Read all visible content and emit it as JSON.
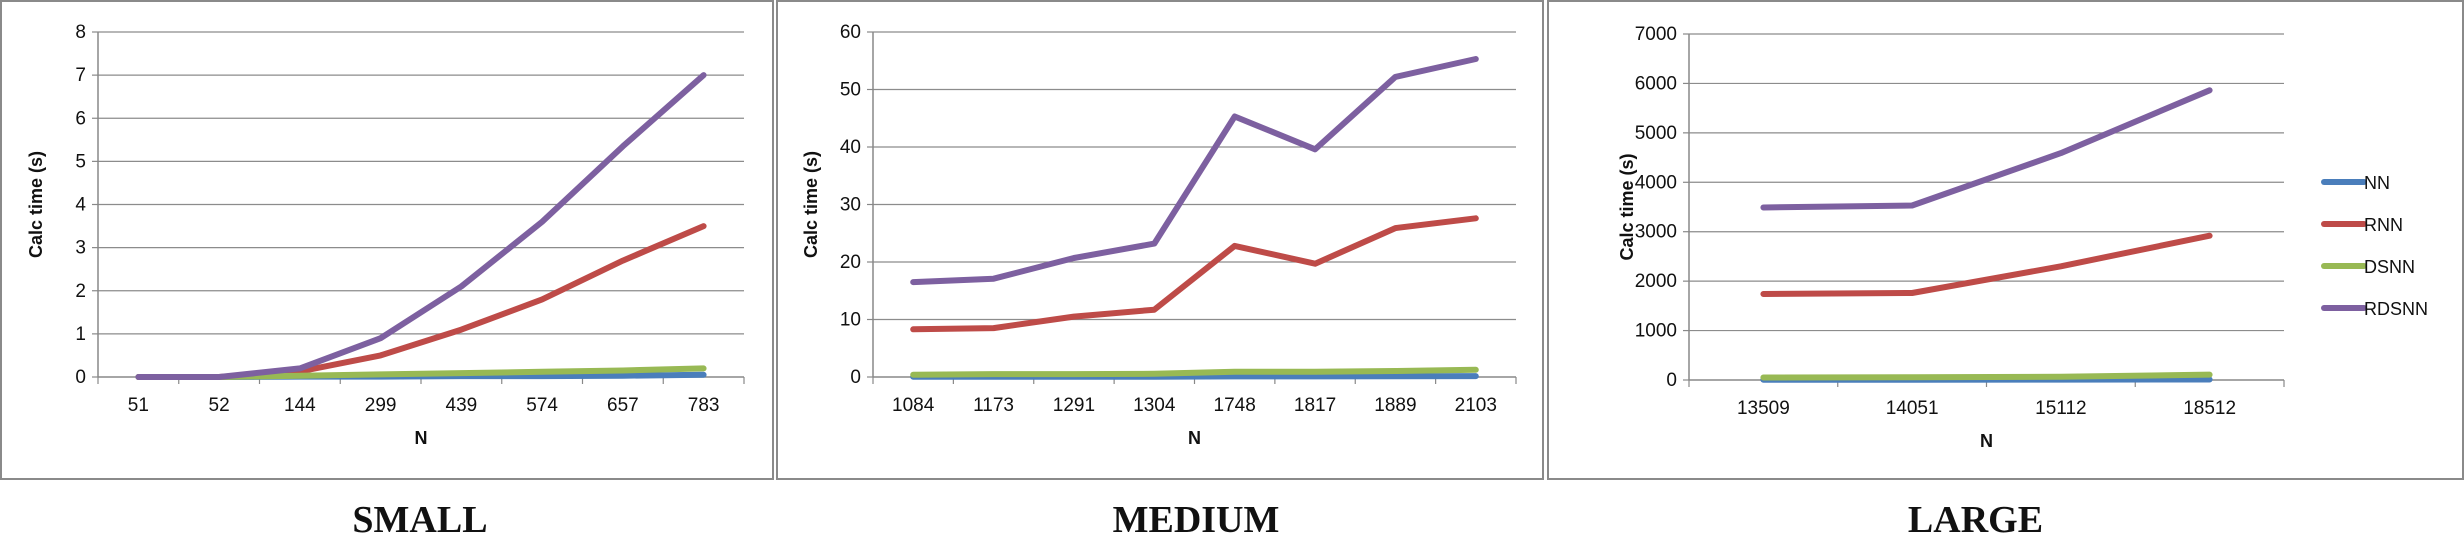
{
  "chart_data": [
    {
      "type": "line",
      "caption": "SMALL",
      "xlabel": "N",
      "ylabel": "Calc time (s)",
      "categories": [
        "51",
        "52",
        "144",
        "299",
        "439",
        "574",
        "657",
        "783"
      ],
      "ylim": [
        0,
        8
      ],
      "yticks": [
        0,
        1,
        2,
        3,
        4,
        5,
        6,
        7,
        8
      ],
      "grid": true,
      "series": [
        {
          "name": "NN",
          "color": "#4a7ebb",
          "values": [
            0,
            0,
            0.01,
            0.01,
            0.02,
            0.02,
            0.03,
            0.05
          ]
        },
        {
          "name": "RNN",
          "color": "#be4b48",
          "values": [
            0,
            0,
            0.13,
            0.5,
            1.1,
            1.8,
            2.7,
            3.5
          ]
        },
        {
          "name": "DSNN",
          "color": "#98b954",
          "values": [
            0,
            0,
            0.03,
            0.06,
            0.09,
            0.12,
            0.15,
            0.2
          ]
        },
        {
          "name": "RDSNN",
          "color": "#7d60a0",
          "values": [
            0,
            0,
            0.2,
            0.9,
            2.1,
            3.6,
            5.35,
            7.0
          ]
        }
      ]
    },
    {
      "type": "line",
      "caption": "MEDIUM",
      "xlabel": "N",
      "ylabel": "Calc time (s)",
      "categories": [
        "1084",
        "1173",
        "1291",
        "1304",
        "1748",
        "1817",
        "1889",
        "2103"
      ],
      "ylim": [
        0,
        60
      ],
      "yticks": [
        0,
        10,
        20,
        30,
        40,
        50,
        60
      ],
      "grid": true,
      "series": [
        {
          "name": "NN",
          "color": "#4a7ebb",
          "values": [
            0.05,
            0.05,
            0.06,
            0.06,
            0.1,
            0.1,
            0.12,
            0.15
          ]
        },
        {
          "name": "RNN",
          "color": "#be4b48",
          "values": [
            8.3,
            8.5,
            10.5,
            11.7,
            22.8,
            19.7,
            25.9,
            27.6
          ]
        },
        {
          "name": "DSNN",
          "color": "#98b954",
          "values": [
            0.4,
            0.5,
            0.5,
            0.55,
            0.9,
            0.9,
            1.05,
            1.25
          ]
        },
        {
          "name": "RDSNN",
          "color": "#7d60a0",
          "values": [
            16.5,
            17.1,
            20.7,
            23.2,
            45.3,
            39.6,
            52.2,
            55.3
          ]
        }
      ]
    },
    {
      "type": "line",
      "caption": "LARGE",
      "xlabel": "N",
      "ylabel": "Calc time (s)",
      "categories": [
        "13509",
        "14051",
        "15112",
        "18512"
      ],
      "ylim": [
        0,
        7000
      ],
      "yticks": [
        0,
        1000,
        2000,
        3000,
        4000,
        5000,
        6000,
        7000
      ],
      "grid": true,
      "legend": "right",
      "series": [
        {
          "name": "NN",
          "color": "#4a7ebb",
          "values": [
            5,
            6,
            8,
            10
          ]
        },
        {
          "name": "RNN",
          "color": "#be4b48",
          "values": [
            1740,
            1760,
            2300,
            2920
          ]
        },
        {
          "name": "DSNN",
          "color": "#98b954",
          "values": [
            50,
            55,
            65,
            110
          ]
        },
        {
          "name": "RDSNN",
          "color": "#7d60a0",
          "values": [
            3490,
            3530,
            4590,
            5860
          ]
        }
      ]
    }
  ]
}
